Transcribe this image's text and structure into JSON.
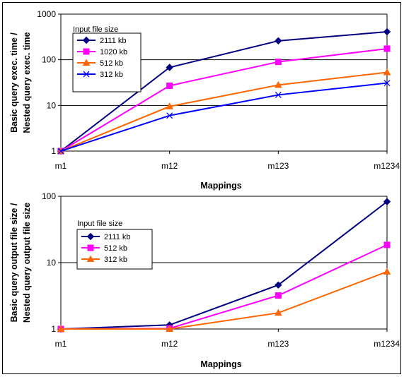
{
  "chart_data": [
    {
      "type": "line",
      "ylabel_line1": "Basic query exec. time /",
      "ylabel_line2": "Nested query exec. time",
      "xlabel": "Mappings",
      "categories": [
        "m1",
        "m12",
        "m123",
        "m1234"
      ],
      "yscale": "log",
      "ylim": [
        1,
        1000
      ],
      "yticks": [
        "1",
        "10",
        "100",
        "1000"
      ],
      "grid": true,
      "legend_title": "Input file size",
      "legend_position": "top-left",
      "series": [
        {
          "name": "2111 kb",
          "color": "#000080",
          "marker": "diamond",
          "values": [
            1,
            68,
            260,
            410
          ]
        },
        {
          "name": "1020 kb",
          "color": "#ff00ff",
          "marker": "square",
          "values": [
            1,
            27,
            90,
            175
          ]
        },
        {
          "name": "512 kb",
          "color": "#ff6600",
          "marker": "triangle",
          "values": [
            1,
            9.5,
            28,
            53
          ]
        },
        {
          "name": "312 kb",
          "color": "#0000ff",
          "marker": "x",
          "values": [
            1,
            6,
            17,
            31
          ]
        }
      ]
    },
    {
      "type": "line",
      "ylabel_line1": "Basic query output file size /",
      "ylabel_line2": "Nested query output file size",
      "xlabel": "Mappings",
      "categories": [
        "m1",
        "m12",
        "m123",
        "m1234"
      ],
      "yscale": "log",
      "ylim": [
        1,
        100
      ],
      "yticks": [
        "1",
        "10",
        "100"
      ],
      "grid": true,
      "legend_title": "Input file size",
      "legend_position": "top-left",
      "series": [
        {
          "name": "2111 kb",
          "color": "#000080",
          "marker": "diamond",
          "values": [
            1,
            1.15,
            4.6,
            83
          ]
        },
        {
          "name": "512 kb",
          "color": "#ff00ff",
          "marker": "square",
          "values": [
            1,
            1.02,
            3.2,
            18.5
          ]
        },
        {
          "name": "312 kb",
          "color": "#ff6600",
          "marker": "triangle",
          "values": [
            1,
            1.0,
            1.75,
            7.3
          ]
        }
      ]
    }
  ]
}
